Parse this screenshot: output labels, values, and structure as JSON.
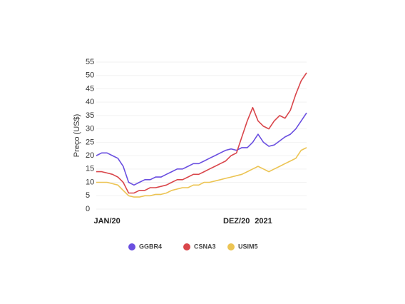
{
  "chart_data": {
    "type": "line",
    "y_label": "Preço (US$)",
    "categories": [
      null,
      null,
      "JAN/20",
      null,
      null,
      null,
      null,
      null,
      null,
      null,
      null,
      null,
      null,
      null,
      null,
      null,
      null,
      null,
      null,
      null,
      null,
      null,
      null,
      null,
      null,
      null,
      "DEZ/20",
      null,
      null,
      null,
      null,
      "2021",
      null,
      null,
      null,
      null,
      null,
      null,
      null,
      null
    ],
    "series": [
      {
        "name": "GGBR4",
        "color": "#6a4fe0",
        "values": [
          20,
          21,
          21,
          20,
          19,
          16,
          10,
          9,
          10,
          11,
          11,
          12,
          12,
          13,
          14,
          15,
          15,
          16,
          17,
          17,
          18,
          19,
          20,
          21,
          22,
          22.5,
          22,
          23,
          23,
          25,
          28,
          25,
          23.5,
          24,
          25.5,
          27,
          28,
          30,
          33,
          36
        ]
      },
      {
        "name": "CSNA3",
        "color": "#d9464b",
        "values": [
          14,
          14,
          13.5,
          13,
          12,
          10,
          6,
          6,
          7,
          7,
          8,
          8,
          8.5,
          9,
          10,
          11,
          11,
          12,
          13,
          13,
          14,
          15,
          16,
          17,
          18,
          20,
          21,
          27,
          33,
          38,
          33,
          31,
          30,
          33,
          35,
          34,
          37,
          43,
          48,
          51
        ]
      },
      {
        "name": "USIM5",
        "color": "#ecc453",
        "values": [
          10,
          10,
          10,
          9.5,
          9,
          7,
          5,
          4.5,
          4.5,
          5,
          5,
          5.5,
          5.5,
          6,
          7,
          7.5,
          8,
          8,
          9,
          9,
          10,
          10,
          10.5,
          11,
          11.5,
          12,
          12.5,
          13,
          14,
          15,
          16,
          15,
          14,
          15,
          16,
          17,
          18,
          19,
          22,
          23
        ]
      }
    ],
    "ylim": [
      0,
      55
    ],
    "yticks": [
      0,
      5,
      10,
      15,
      20,
      25,
      30,
      35,
      40,
      45,
      50,
      55
    ]
  }
}
